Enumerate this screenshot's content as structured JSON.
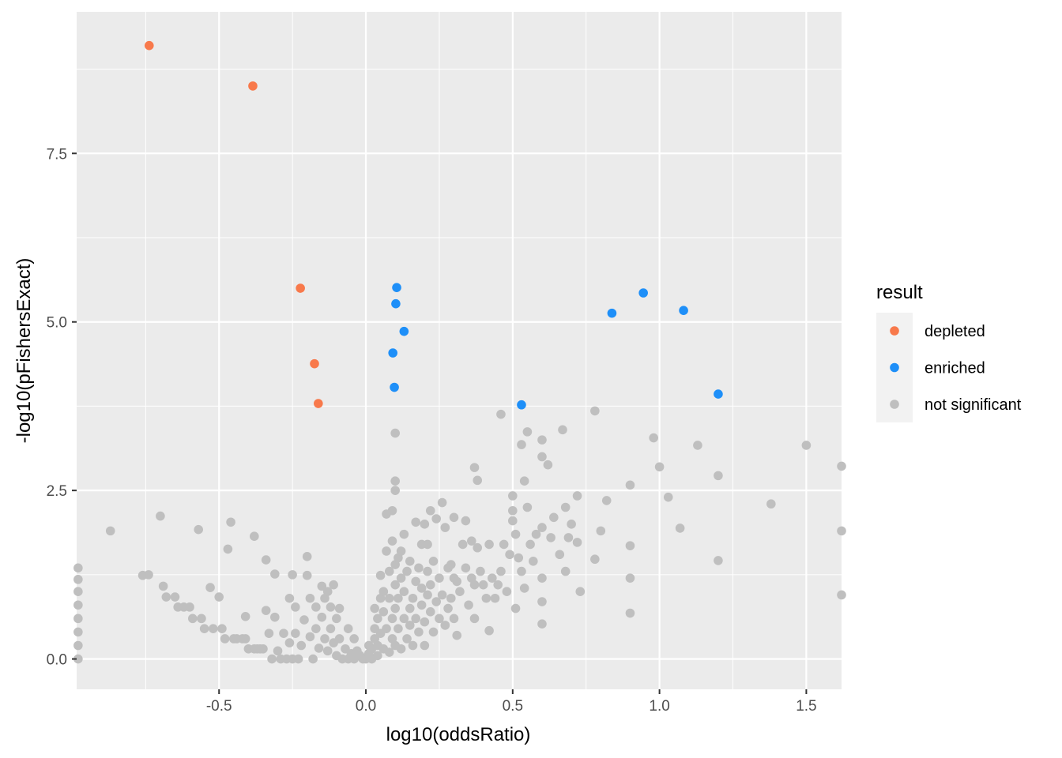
{
  "chart_data": {
    "type": "scatter",
    "xlabel": "log10(oddsRatio)",
    "ylabel": "-log10(pFishersExact)",
    "xlim": [
      -0.985,
      1.62
    ],
    "ylim": [
      -0.45,
      9.6
    ],
    "x_ticks": [
      -0.5,
      0.0,
      0.5,
      1.0,
      1.5
    ],
    "x_tick_labels": [
      "-0.5",
      "0.0",
      "0.5",
      "1.0",
      "1.5"
    ],
    "y_ticks": [
      0.0,
      2.5,
      5.0,
      7.5
    ],
    "y_tick_labels": [
      "0.0",
      "2.5",
      "5.0",
      "7.5"
    ],
    "grid": true,
    "legend": {
      "title": "result",
      "placement": "right",
      "entries": [
        "depleted",
        "enriched",
        "not significant"
      ]
    },
    "colors": {
      "depleted": "#f8794b",
      "enriched": "#1e8ff8",
      "not significant": "#bfbfbf",
      "panel": "#ebebeb",
      "grid": "#ffffff"
    },
    "series": [
      {
        "name": "not significant",
        "points": [
          [
            -0.98,
            1.35
          ],
          [
            -0.98,
            1.18
          ],
          [
            -0.98,
            1.0
          ],
          [
            -0.98,
            0.8
          ],
          [
            -0.98,
            0.6
          ],
          [
            -0.98,
            0.4
          ],
          [
            -0.98,
            0.2
          ],
          [
            -0.98,
            0.0
          ],
          [
            -0.87,
            1.9
          ],
          [
            -0.76,
            1.24
          ],
          [
            -0.74,
            1.25
          ],
          [
            -0.7,
            2.12
          ],
          [
            -0.69,
            1.08
          ],
          [
            -0.68,
            0.92
          ],
          [
            -0.65,
            0.92
          ],
          [
            -0.64,
            0.77
          ],
          [
            -0.62,
            0.77
          ],
          [
            -0.6,
            0.77
          ],
          [
            -0.59,
            0.6
          ],
          [
            -0.57,
            1.92
          ],
          [
            -0.56,
            0.6
          ],
          [
            -0.55,
            0.45
          ],
          [
            -0.53,
            1.06
          ],
          [
            -0.52,
            0.45
          ],
          [
            -0.5,
            0.92
          ],
          [
            -0.49,
            0.45
          ],
          [
            -0.48,
            0.3
          ],
          [
            -0.47,
            1.63
          ],
          [
            -0.46,
            2.03
          ],
          [
            -0.45,
            0.3
          ],
          [
            -0.44,
            0.3
          ],
          [
            -0.42,
            0.3
          ],
          [
            -0.41,
            0.3
          ],
          [
            -0.41,
            0.63
          ],
          [
            -0.4,
            0.15
          ],
          [
            -0.38,
            1.82
          ],
          [
            -0.38,
            0.15
          ],
          [
            -0.37,
            0.15
          ],
          [
            -0.36,
            0.15
          ],
          [
            -0.35,
            0.15
          ],
          [
            -0.34,
            0.72
          ],
          [
            -0.34,
            1.47
          ],
          [
            -0.33,
            0.38
          ],
          [
            -0.32,
            0.0
          ],
          [
            -0.31,
            1.26
          ],
          [
            -0.31,
            0.62
          ],
          [
            -0.3,
            0.12
          ],
          [
            -0.29,
            0.0
          ],
          [
            -0.28,
            0.38
          ],
          [
            -0.27,
            0.0
          ],
          [
            -0.26,
            0.24
          ],
          [
            -0.26,
            0.9
          ],
          [
            -0.25,
            1.25
          ],
          [
            -0.25,
            0.0
          ],
          [
            -0.24,
            0.77
          ],
          [
            -0.24,
            0.38
          ],
          [
            -0.23,
            0.0
          ],
          [
            -0.22,
            0.2
          ],
          [
            -0.21,
            0.58
          ],
          [
            -0.2,
            1.24
          ],
          [
            -0.2,
            1.52
          ],
          [
            -0.19,
            0.9
          ],
          [
            -0.19,
            0.33
          ],
          [
            -0.18,
            0.0
          ],
          [
            -0.17,
            0.77
          ],
          [
            -0.17,
            0.45
          ],
          [
            -0.16,
            0.16
          ],
          [
            -0.15,
            1.08
          ],
          [
            -0.15,
            0.62
          ],
          [
            -0.14,
            0.9
          ],
          [
            -0.14,
            0.3
          ],
          [
            -0.13,
            1.0
          ],
          [
            -0.13,
            0.12
          ],
          [
            -0.12,
            0.77
          ],
          [
            -0.12,
            0.45
          ],
          [
            -0.11,
            1.1
          ],
          [
            -0.11,
            0.24
          ],
          [
            -0.1,
            0.6
          ],
          [
            -0.1,
            0.05
          ],
          [
            -0.09,
            0.75
          ],
          [
            -0.09,
            0.3
          ],
          [
            -0.08,
            0.0
          ],
          [
            -0.07,
            0.15
          ],
          [
            -0.06,
            0.45
          ],
          [
            -0.06,
            0.0
          ],
          [
            -0.05,
            0.08
          ],
          [
            -0.04,
            0.3
          ],
          [
            -0.04,
            0.0
          ],
          [
            -0.03,
            0.12
          ],
          [
            -0.02,
            0.05
          ],
          [
            -0.01,
            0.0
          ],
          [
            0.0,
            0.0
          ],
          [
            0.01,
            0.08
          ],
          [
            0.01,
            0.2
          ],
          [
            0.02,
            0.0
          ],
          [
            0.02,
            0.15
          ],
          [
            0.03,
            0.3
          ],
          [
            0.03,
            0.45
          ],
          [
            0.03,
            0.75
          ],
          [
            0.04,
            0.05
          ],
          [
            0.04,
            0.2
          ],
          [
            0.04,
            0.6
          ],
          [
            0.05,
            0.9
          ],
          [
            0.05,
            1.24
          ],
          [
            0.05,
            0.38
          ],
          [
            0.06,
            1.0
          ],
          [
            0.06,
            0.15
          ],
          [
            0.06,
            0.7
          ],
          [
            0.07,
            1.6
          ],
          [
            0.07,
            2.15
          ],
          [
            0.07,
            0.45
          ],
          [
            0.08,
            1.3
          ],
          [
            0.08,
            0.9
          ],
          [
            0.08,
            0.1
          ],
          [
            0.09,
            2.2
          ],
          [
            0.09,
            1.75
          ],
          [
            0.09,
            0.6
          ],
          [
            0.09,
            0.3
          ],
          [
            0.1,
            2.64
          ],
          [
            0.1,
            2.5
          ],
          [
            0.1,
            1.4
          ],
          [
            0.1,
            1.1
          ],
          [
            0.1,
            0.75
          ],
          [
            0.1,
            0.2
          ],
          [
            0.1,
            3.35
          ],
          [
            0.11,
            1.5
          ],
          [
            0.11,
            0.45
          ],
          [
            0.11,
            0.9
          ],
          [
            0.12,
            1.6
          ],
          [
            0.12,
            1.2
          ],
          [
            0.12,
            0.15
          ],
          [
            0.13,
            1.85
          ],
          [
            0.13,
            0.6
          ],
          [
            0.13,
            1.0
          ],
          [
            0.14,
            1.3
          ],
          [
            0.14,
            0.3
          ],
          [
            0.15,
            1.45
          ],
          [
            0.15,
            0.75
          ],
          [
            0.15,
            0.5
          ],
          [
            0.16,
            0.9
          ],
          [
            0.16,
            0.2
          ],
          [
            0.17,
            2.03
          ],
          [
            0.17,
            1.15
          ],
          [
            0.17,
            0.6
          ],
          [
            0.18,
            1.35
          ],
          [
            0.18,
            0.4
          ],
          [
            0.19,
            1.7
          ],
          [
            0.19,
            0.8
          ],
          [
            0.19,
            1.05
          ],
          [
            0.2,
            2.0
          ],
          [
            0.2,
            0.55
          ],
          [
            0.2,
            0.2
          ],
          [
            0.21,
            1.7
          ],
          [
            0.21,
            1.3
          ],
          [
            0.21,
            0.95
          ],
          [
            0.22,
            2.2
          ],
          [
            0.22,
            1.1
          ],
          [
            0.22,
            0.7
          ],
          [
            0.23,
            1.45
          ],
          [
            0.23,
            0.4
          ],
          [
            0.24,
            2.08
          ],
          [
            0.24,
            0.85
          ],
          [
            0.25,
            1.2
          ],
          [
            0.25,
            0.6
          ],
          [
            0.26,
            2.32
          ],
          [
            0.26,
            0.95
          ],
          [
            0.27,
            1.95
          ],
          [
            0.27,
            0.5
          ],
          [
            0.28,
            1.35
          ],
          [
            0.28,
            0.75
          ],
          [
            0.29,
            1.4
          ],
          [
            0.29,
            0.9
          ],
          [
            0.3,
            2.1
          ],
          [
            0.3,
            1.2
          ],
          [
            0.3,
            0.6
          ],
          [
            0.31,
            1.15
          ],
          [
            0.31,
            0.35
          ],
          [
            0.32,
            1.0
          ],
          [
            0.33,
            1.7
          ],
          [
            0.34,
            2.05
          ],
          [
            0.34,
            1.35
          ],
          [
            0.35,
            0.8
          ],
          [
            0.36,
            1.75
          ],
          [
            0.36,
            1.2
          ],
          [
            0.37,
            2.84
          ],
          [
            0.37,
            1.1
          ],
          [
            0.37,
            0.6
          ],
          [
            0.38,
            2.65
          ],
          [
            0.38,
            1.65
          ],
          [
            0.39,
            1.3
          ],
          [
            0.4,
            1.1
          ],
          [
            0.41,
            0.9
          ],
          [
            0.42,
            1.7
          ],
          [
            0.42,
            0.42
          ],
          [
            0.43,
            1.2
          ],
          [
            0.44,
            0.9
          ],
          [
            0.45,
            1.1
          ],
          [
            0.46,
            3.63
          ],
          [
            0.46,
            1.3
          ],
          [
            0.47,
            1.7
          ],
          [
            0.48,
            1.0
          ],
          [
            0.49,
            1.55
          ],
          [
            0.5,
            2.42
          ],
          [
            0.5,
            2.2
          ],
          [
            0.5,
            2.05
          ],
          [
            0.51,
            1.85
          ],
          [
            0.51,
            0.75
          ],
          [
            0.52,
            1.5
          ],
          [
            0.53,
            3.18
          ],
          [
            0.53,
            1.3
          ],
          [
            0.54,
            2.64
          ],
          [
            0.54,
            1.05
          ],
          [
            0.55,
            3.37
          ],
          [
            0.55,
            2.25
          ],
          [
            0.56,
            1.7
          ],
          [
            0.57,
            1.45
          ],
          [
            0.58,
            1.85
          ],
          [
            0.6,
            3.25
          ],
          [
            0.6,
            3.0
          ],
          [
            0.6,
            1.95
          ],
          [
            0.6,
            1.2
          ],
          [
            0.6,
            0.85
          ],
          [
            0.6,
            0.52
          ],
          [
            0.62,
            2.88
          ],
          [
            0.63,
            1.8
          ],
          [
            0.64,
            2.1
          ],
          [
            0.66,
            1.55
          ],
          [
            0.67,
            3.4
          ],
          [
            0.68,
            2.25
          ],
          [
            0.68,
            1.3
          ],
          [
            0.69,
            1.8
          ],
          [
            0.7,
            2.0
          ],
          [
            0.72,
            2.42
          ],
          [
            0.72,
            1.73
          ],
          [
            0.73,
            1.0
          ],
          [
            0.78,
            3.68
          ],
          [
            0.78,
            1.48
          ],
          [
            0.8,
            1.9
          ],
          [
            0.82,
            2.35
          ],
          [
            0.9,
            2.58
          ],
          [
            0.9,
            1.68
          ],
          [
            0.9,
            1.2
          ],
          [
            0.9,
            0.68
          ],
          [
            0.98,
            3.28
          ],
          [
            1.0,
            2.85
          ],
          [
            1.03,
            2.4
          ],
          [
            1.07,
            1.94
          ],
          [
            1.13,
            3.17
          ],
          [
            1.2,
            2.72
          ],
          [
            1.2,
            1.46
          ],
          [
            1.38,
            2.3
          ],
          [
            1.5,
            3.17
          ],
          [
            1.62,
            2.86
          ],
          [
            1.62,
            1.9
          ],
          [
            1.62,
            0.95
          ]
        ]
      },
      {
        "name": "depleted",
        "points": [
          [
            -0.738,
            9.1
          ],
          [
            -0.385,
            8.5
          ],
          [
            -0.223,
            5.5
          ],
          [
            -0.175,
            4.38
          ],
          [
            -0.162,
            3.79
          ]
        ]
      },
      {
        "name": "enriched",
        "points": [
          [
            0.105,
            5.51
          ],
          [
            0.102,
            5.27
          ],
          [
            0.13,
            4.86
          ],
          [
            0.092,
            4.54
          ],
          [
            0.097,
            4.03
          ],
          [
            0.53,
            3.77
          ],
          [
            0.838,
            5.13
          ],
          [
            0.945,
            5.43
          ],
          [
            1.082,
            5.17
          ],
          [
            1.2,
            3.93
          ]
        ]
      }
    ]
  }
}
